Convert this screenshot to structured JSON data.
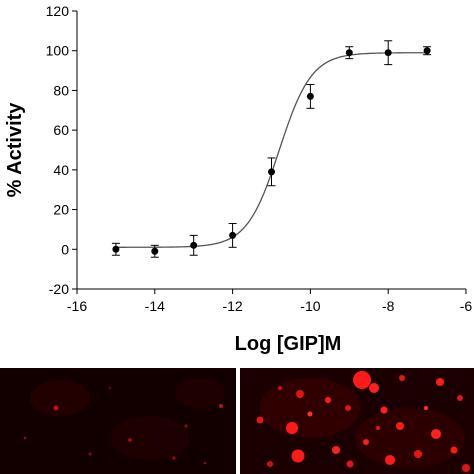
{
  "chart_data": {
    "type": "scatter",
    "xlabel": "Log [GIP]M",
    "ylabel": "% Activity",
    "xlim": [
      -16,
      -6
    ],
    "ylim": [
      -20,
      120
    ],
    "xticks": [
      -16,
      -14,
      -12,
      -10,
      -8,
      -6
    ],
    "xtick_labels": [
      "-16",
      "-14",
      "-12",
      "-10",
      "-8",
      "-6"
    ],
    "yticks": [
      -20,
      0,
      20,
      40,
      60,
      80,
      100,
      120
    ],
    "ytick_labels": [
      "-20",
      "0",
      "20",
      "40",
      "60",
      "80",
      "100",
      "120"
    ],
    "grid": false,
    "series": [
      {
        "x": [
          -15,
          -14,
          -13,
          -12,
          -11,
          -10,
          -9,
          -8,
          -7
        ],
        "y": [
          0,
          -1,
          2,
          7,
          39,
          77,
          99,
          99,
          100
        ],
        "error": [
          3,
          3,
          5,
          6,
          7,
          6,
          3,
          6,
          2
        ],
        "marker_color": "#000000"
      }
    ],
    "fit_curve": {
      "model": "sigmoidal dose-response",
      "bottom": 1,
      "top": 99,
      "log_ec50": -10.8,
      "hill_slope": 1.05,
      "color": "#555555"
    }
  },
  "images": {
    "left_panel": "fluorescence-micrograph-dim-red",
    "right_panel": "fluorescence-micrograph-bright-red",
    "signal_color": "#ff1010",
    "background_color": "#120000"
  }
}
